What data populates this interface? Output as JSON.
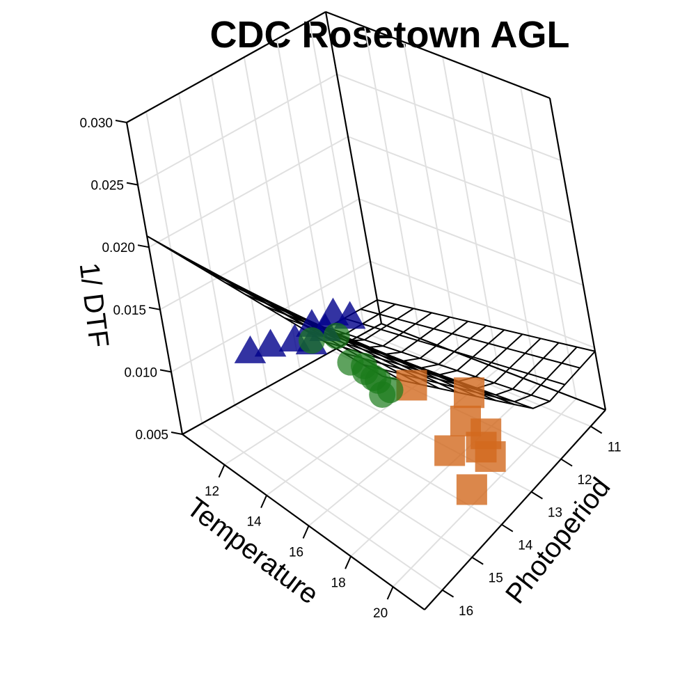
{
  "chart_data": {
    "type": "scatter",
    "title": "CDC Rosetown AGL",
    "axes": {
      "x": {
        "label": "Temperature",
        "range": [
          10,
          21.5
        ],
        "ticks": [
          "12",
          "14",
          "16",
          "18",
          "20"
        ]
      },
      "y": {
        "label": "Photoperiod",
        "range": [
          10.5,
          16.6
        ],
        "ticks": [
          "11",
          "12",
          "13",
          "14",
          "15",
          "16"
        ]
      },
      "z": {
        "label": "1/ DTF",
        "range": [
          0.005,
          0.03
        ],
        "ticks": [
          "0.005",
          "0.010",
          "0.015",
          "0.020",
          "0.025",
          "0.030"
        ]
      }
    },
    "grid": true,
    "surface": {
      "type": "fitted-plane-mesh",
      "rows": 12,
      "cols": 12
    },
    "series": [
      {
        "marker": "triangle",
        "color": "#00008b",
        "points": [
          {
            "x": 10.2,
            "y": 11.9,
            "z": 0.008
          },
          {
            "x": 10.5,
            "y": 11.6,
            "z": 0.0075
          },
          {
            "x": 10.3,
            "y": 12.6,
            "z": 0.0082
          },
          {
            "x": 10.6,
            "y": 12.4,
            "z": 0.0078
          },
          {
            "x": 10.4,
            "y": 13.2,
            "z": 0.008
          },
          {
            "x": 10.9,
            "y": 13.0,
            "z": 0.0079
          },
          {
            "x": 10.2,
            "y": 13.8,
            "z": 0.0083
          },
          {
            "x": 10.4,
            "y": 14.5,
            "z": 0.009
          }
        ]
      },
      {
        "marker": "square",
        "color": "#d2691e",
        "points": [
          {
            "x": 15.0,
            "y": 12.5,
            "z": 0.007
          },
          {
            "x": 17.1,
            "y": 12.0,
            "z": 0.007
          },
          {
            "x": 18.0,
            "y": 12.7,
            "z": 0.007
          },
          {
            "x": 18.6,
            "y": 12.5,
            "z": 0.006
          },
          {
            "x": 18.8,
            "y": 12.8,
            "z": 0.0058
          },
          {
            "x": 18.4,
            "y": 13.5,
            "z": 0.0068
          },
          {
            "x": 19.6,
            "y": 13.0,
            "z": 0.0062
          },
          {
            "x": 20.4,
            "y": 14.1,
            "z": 0.007
          }
        ]
      },
      {
        "marker": "circle",
        "color": "#1a7a1a",
        "points": [
          {
            "x": 17.0,
            "y": 16.1,
            "z": 0.02
          },
          {
            "x": 18.4,
            "y": 16.1,
            "z": 0.022
          },
          {
            "x": 18.7,
            "y": 16.0,
            "z": 0.02
          },
          {
            "x": 19.6,
            "y": 16.1,
            "z": 0.021
          },
          {
            "x": 20.0,
            "y": 16.3,
            "z": 0.0215
          },
          {
            "x": 20.2,
            "y": 16.2,
            "z": 0.021
          },
          {
            "x": 20.6,
            "y": 16.0,
            "z": 0.02
          },
          {
            "x": 20.9,
            "y": 16.4,
            "z": 0.021
          },
          {
            "x": 21.0,
            "y": 16.5,
            "z": 0.0225
          }
        ]
      }
    ]
  }
}
